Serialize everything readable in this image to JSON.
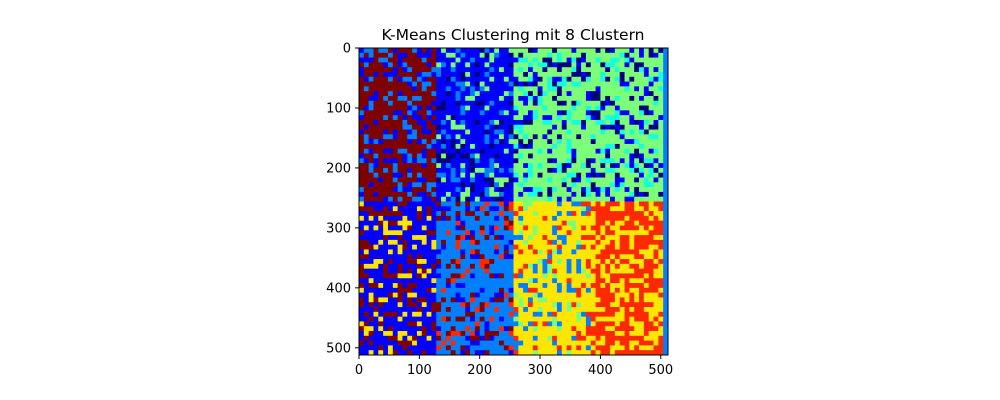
{
  "chart_data": {
    "type": "heatmap",
    "title": "K-Means Clustering mit 8 Clustern",
    "xlabel": "",
    "ylabel": "",
    "xlim": [
      0,
      512
    ],
    "ylim": [
      512,
      0
    ],
    "x_ticks": [
      0,
      100,
      200,
      300,
      400,
      500
    ],
    "y_ticks": [
      0,
      100,
      200,
      300,
      400,
      500
    ],
    "image_size": [
      512,
      512
    ],
    "n_clusters": 8,
    "colormap": "jet",
    "legend": "none",
    "grid": false,
    "cluster_colors": [
      "#00007f",
      "#0000ff",
      "#007fff",
      "#15ffe1",
      "#7cff79",
      "#ffe600",
      "#ff2900",
      "#7f0000"
    ],
    "regions": [
      {
        "x": [
          0,
          128
        ],
        "y": [
          0,
          256
        ],
        "dominant_cluster": 7,
        "secondary_clusters": [
          1,
          2
        ]
      },
      {
        "x": [
          128,
          256
        ],
        "y": [
          0,
          256
        ],
        "dominant_cluster": 1,
        "secondary_clusters": [
          2,
          0,
          4
        ]
      },
      {
        "x": [
          256,
          512
        ],
        "y": [
          0,
          256
        ],
        "dominant_cluster": 4,
        "secondary_clusters": [
          1,
          0,
          3
        ]
      },
      {
        "x": [
          0,
          128
        ],
        "y": [
          256,
          512
        ],
        "dominant_cluster": 1,
        "secondary_clusters": [
          7,
          5
        ]
      },
      {
        "x": [
          128,
          256
        ],
        "y": [
          256,
          512
        ],
        "dominant_cluster": 2,
        "secondary_clusters": [
          7,
          1,
          6
        ]
      },
      {
        "x": [
          256,
          384
        ],
        "y": [
          256,
          512
        ],
        "dominant_cluster": 5,
        "secondary_clusters": [
          6,
          2,
          4
        ]
      },
      {
        "x": [
          384,
          512
        ],
        "y": [
          256,
          512
        ],
        "dominant_cluster": 6,
        "secondary_clusters": [
          5
        ]
      }
    ]
  }
}
